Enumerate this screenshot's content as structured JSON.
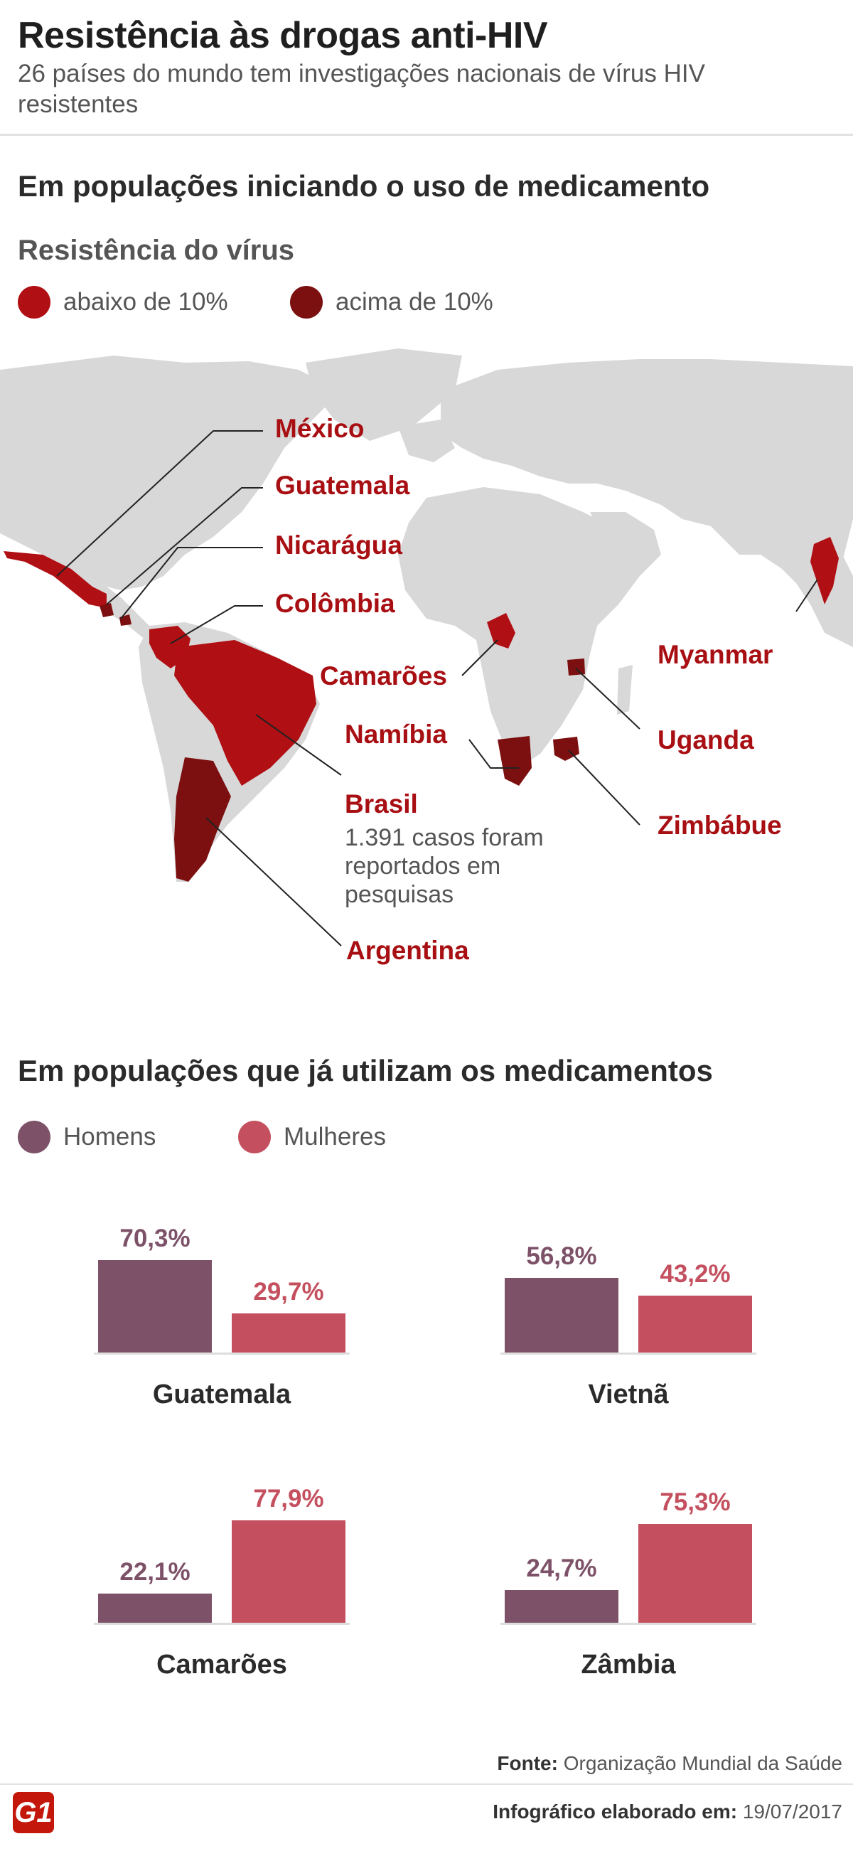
{
  "header": {
    "title": "Resistência às drogas anti-HIV",
    "subtitle": "26 países do mundo tem investigações nacionais de vírus HIV resistentes"
  },
  "section1": {
    "heading": "Em populações iniciando o uso de medicamento",
    "legend_title": "Resistência do vírus",
    "legend": [
      {
        "label": "abaixo de 10%",
        "color": "#b00f14"
      },
      {
        "label": "acima de 10%",
        "color": "#7c1010"
      }
    ],
    "map_labels": {
      "mexico": "México",
      "guatemala": "Guatemala",
      "nicaragua": "Nicarágua",
      "colombia": "Colômbia",
      "camaroes": "Camarões",
      "namibia": "Namíbia",
      "brasil": "Brasil",
      "brasil_note": "1.391 casos foram reportados em pesquisas",
      "argentina": "Argentina",
      "myanmar": "Myanmar",
      "uganda": "Uganda",
      "zimbabue": "Zimbábue"
    },
    "colors": {
      "map_land": "#d8d8d8",
      "label": "#a80f13"
    }
  },
  "section2": {
    "heading": "Em populações que já utilizam os medicamentos",
    "legend": [
      {
        "label": "Homens",
        "color": "#7d5269"
      },
      {
        "label": "Mulheres",
        "color": "#c4505f"
      }
    ]
  },
  "chart_data": {
    "type": "bar",
    "unit": "%",
    "series": [
      {
        "name": "Homens",
        "color": "#7d5269"
      },
      {
        "name": "Mulheres",
        "color": "#c4505f"
      }
    ],
    "charts": [
      {
        "category": "Guatemala",
        "values": [
          70.3,
          29.7
        ],
        "labels": [
          "70,3%",
          "29,7%"
        ]
      },
      {
        "category": "Vietnã",
        "values": [
          56.8,
          43.2
        ],
        "labels": [
          "56,8%",
          "43,2%"
        ]
      },
      {
        "category": "Camarões",
        "values": [
          22.1,
          77.9
        ],
        "labels": [
          "22,1%",
          "77,9%"
        ]
      },
      {
        "category": "Zâmbia",
        "values": [
          24.7,
          75.3
        ],
        "labels": [
          "24,7%",
          "75,3%"
        ]
      }
    ]
  },
  "footer": {
    "source_label": "Fonte:",
    "source": "Organização Mundial da Saúde",
    "date_label": "Infográfico elaborado em:",
    "date": "19/07/2017",
    "logo": "G1"
  }
}
